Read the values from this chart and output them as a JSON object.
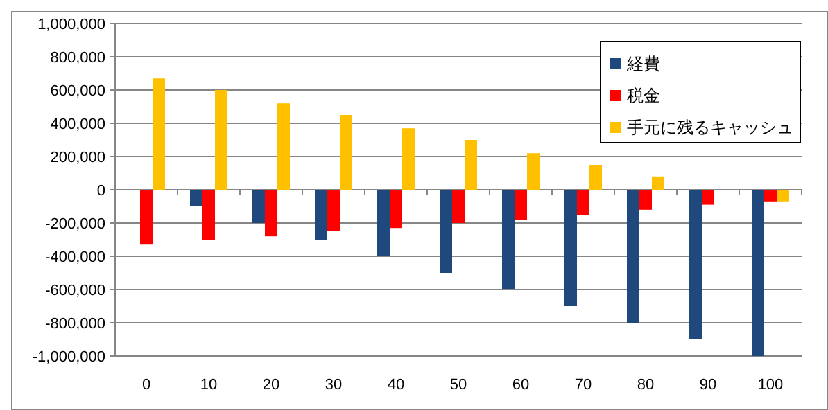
{
  "chart_data": {
    "type": "bar",
    "categories": [
      "0",
      "10",
      "20",
      "30",
      "40",
      "50",
      "60",
      "70",
      "80",
      "90",
      "100"
    ],
    "series": [
      {
        "name": "経費",
        "color": "#1f497d",
        "values": [
          0,
          -100000,
          -200000,
          -300000,
          -400000,
          -500000,
          -600000,
          -700000,
          -800000,
          -900000,
          -1000000
        ]
      },
      {
        "name": "税金",
        "color": "#ff0000",
        "values": [
          -330000,
          -300000,
          -280000,
          -250000,
          -230000,
          -200000,
          -180000,
          -150000,
          -120000,
          -90000,
          -70000
        ]
      },
      {
        "name": "手元に残るキャッシュ",
        "color": "#ffc000",
        "values": [
          670000,
          600000,
          520000,
          450000,
          370000,
          300000,
          220000,
          150000,
          80000,
          0,
          -70000
        ]
      }
    ],
    "ylim": [
      -1000000,
      1000000
    ],
    "yticks": [
      {
        "value": -1000000,
        "label": "-1,000,000"
      },
      {
        "value": -800000,
        "label": "-800,000"
      },
      {
        "value": -600000,
        "label": "-600,000"
      },
      {
        "value": -400000,
        "label": "-400,000"
      },
      {
        "value": -200000,
        "label": "-200,000"
      },
      0,
      {
        "value": 200000,
        "label": "200,000"
      },
      {
        "value": 400000,
        "label": "400,000"
      },
      {
        "value": 600000,
        "label": "600,000"
      },
      {
        "value": 800000,
        "label": "800,000"
      },
      {
        "value": 1000000,
        "label": "1,000,000"
      }
    ],
    "grid": "y",
    "legend": "top right"
  }
}
